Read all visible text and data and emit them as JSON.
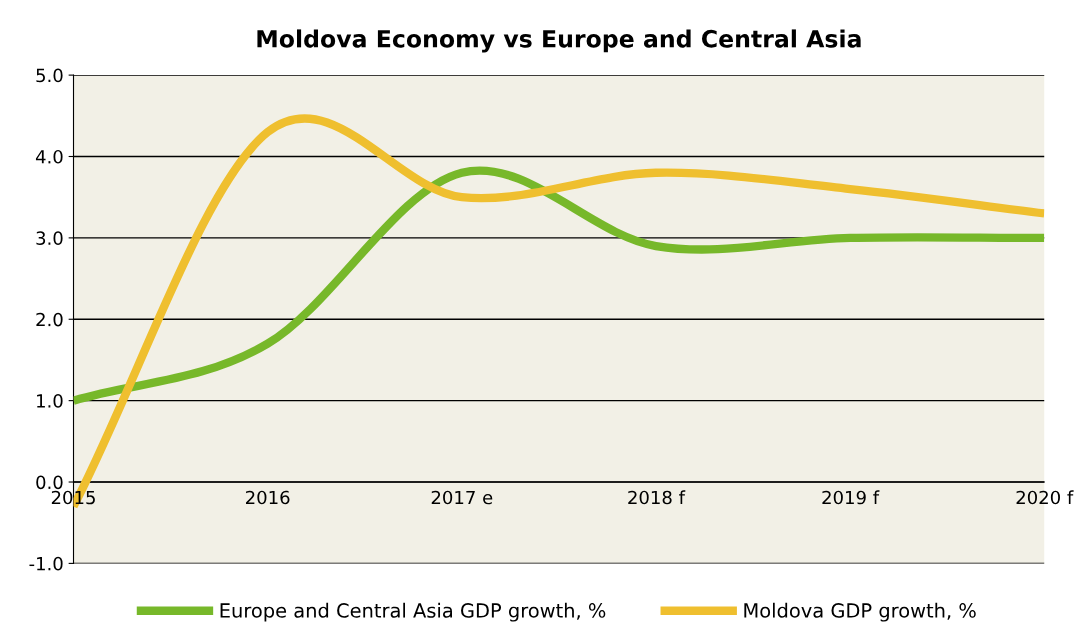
{
  "chart_data": {
    "type": "line",
    "title": "Moldova Economy vs Europe and Central Asia",
    "categories": [
      "2015",
      "2016",
      "2017 e",
      "2018 f",
      "2019 f",
      "2020 f"
    ],
    "series": [
      {
        "name": "Europe and Central Asia GDP growth, %",
        "color": "#77b82a",
        "values": [
          1.0,
          1.7,
          3.8,
          2.9,
          3.0,
          3.0
        ]
      },
      {
        "name": "Moldova GDP growth, %",
        "color": "#efbf2f",
        "values": [
          -0.3,
          4.3,
          3.5,
          3.8,
          3.6,
          3.3
        ]
      }
    ],
    "ylim": [
      -1,
      5
    ],
    "yticks": [
      {
        "value": -1,
        "label": "-1.0"
      },
      {
        "value": 0,
        "label": "0.0"
      },
      {
        "value": 1,
        "label": "1.0"
      },
      {
        "value": 2,
        "label": "2.0"
      },
      {
        "value": 3,
        "label": "3.0"
      },
      {
        "value": 4,
        "label": "4.0"
      },
      {
        "value": 5,
        "label": "5.0"
      }
    ],
    "grid": "y",
    "legend": "bottom",
    "marker": "none",
    "line_style": "solid"
  }
}
